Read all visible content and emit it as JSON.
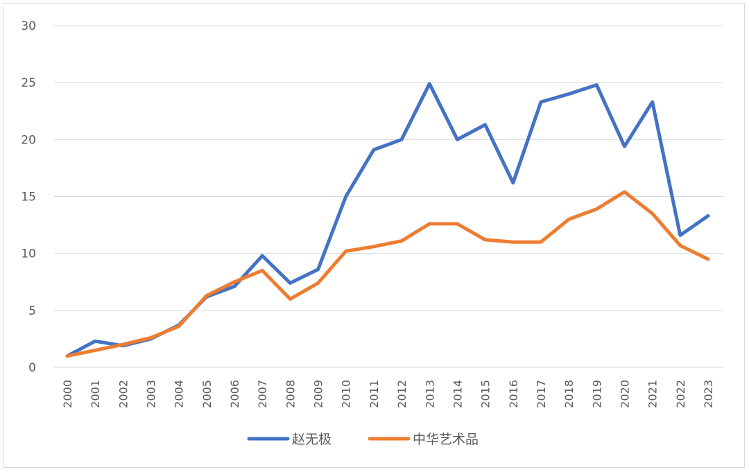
{
  "chart_data": {
    "type": "line",
    "title": "",
    "xlabel": "",
    "ylabel": "",
    "ylim": [
      0,
      30
    ],
    "yticks": [
      "0",
      "5",
      "10",
      "15",
      "20",
      "25",
      "30"
    ],
    "grid": "horizontal",
    "legend_position": "bottom",
    "categories": [
      "2000",
      "2001",
      "2002",
      "2003",
      "2004",
      "2005",
      "2006",
      "2007",
      "2008",
      "2009",
      "2010",
      "2011",
      "2012",
      "2013",
      "2014",
      "2015",
      "2016",
      "2017",
      "2018",
      "2019",
      "2020",
      "2021",
      "2022",
      "2023"
    ],
    "series": [
      {
        "name": "赵无极",
        "color": "#4472c4",
        "values": [
          1.0,
          2.3,
          1.9,
          2.5,
          3.7,
          6.2,
          7.1,
          9.8,
          7.4,
          8.6,
          15.0,
          19.1,
          20.0,
          24.9,
          20.0,
          21.3,
          16.2,
          23.3,
          24.0,
          24.8,
          19.4,
          23.3,
          11.6,
          13.3
        ]
      },
      {
        "name": "中华艺术品",
        "color": "#ed7d31",
        "values": [
          1.0,
          1.5,
          2.0,
          2.6,
          3.6,
          6.3,
          7.5,
          8.5,
          6.0,
          7.4,
          10.2,
          10.6,
          11.1,
          12.6,
          12.6,
          11.2,
          11.0,
          11.0,
          13.0,
          13.9,
          15.4,
          13.5,
          10.7,
          9.5
        ]
      }
    ]
  }
}
